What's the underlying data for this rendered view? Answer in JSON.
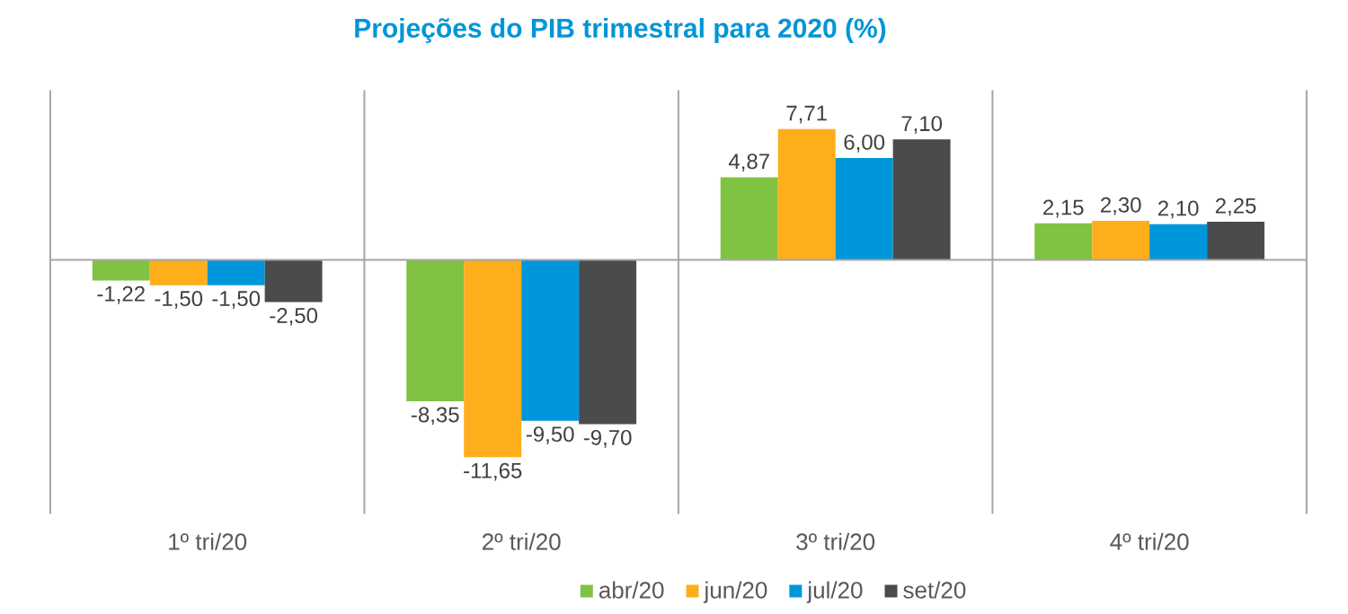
{
  "chart_data": {
    "type": "bar",
    "title": "Projeções do PIB trimestral para 2020 (%)",
    "categories": [
      "1º tri/20",
      "2º tri/20",
      "3º tri/20",
      "4º tri/20"
    ],
    "series": [
      {
        "name": "abr/20",
        "color": "#80C242",
        "values": [
          -1.22,
          -8.35,
          4.87,
          2.15
        ],
        "value_labels": [
          "-1,22",
          "-8,35",
          "4,87",
          "2,15"
        ]
      },
      {
        "name": "jun/20",
        "color": "#FDAE1A",
        "values": [
          -1.5,
          -11.65,
          7.71,
          2.3
        ],
        "value_labels": [
          "-1,50",
          "-11,65",
          "7,71",
          "2,30"
        ]
      },
      {
        "name": "jul/20",
        "color": "#0096DB",
        "values": [
          -1.5,
          -9.5,
          6.0,
          2.1
        ],
        "value_labels": [
          "-1,50",
          "-9,50",
          "6,00",
          "2,10"
        ]
      },
      {
        "name": "set/20",
        "color": "#4A4B4D",
        "values": [
          -2.5,
          -9.7,
          7.1,
          2.25
        ],
        "value_labels": [
          "-2,50",
          "-9,70",
          "7,10",
          "2,25"
        ]
      }
    ],
    "ylim": [
      -15,
      10
    ],
    "grid": "x",
    "legend": "bottom",
    "tick_labels": "x"
  }
}
